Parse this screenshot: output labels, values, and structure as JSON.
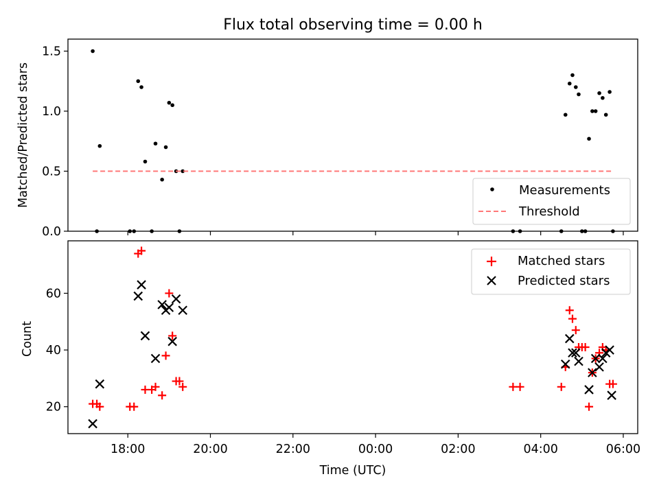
{
  "chart_data": [
    {
      "type": "scatter",
      "title": "Flux total observing time = 0.00 h",
      "ylabel": "Matched/Predicted stars",
      "xlabel": "",
      "ylim": [
        0,
        1.6
      ],
      "yticks": [
        0.0,
        0.5,
        1.0,
        1.5
      ],
      "ytick_labels": [
        "0.0",
        "0.5",
        "1.0",
        "1.5"
      ],
      "xlim_hours": [
        16.55,
        30.35
      ],
      "xticks_hours": [
        18,
        20,
        22,
        24,
        26,
        28,
        30
      ],
      "legend_position": "lower-right",
      "series": [
        {
          "name": "Measurements",
          "color": "#000000",
          "marker": "dot",
          "points": [
            [
              17.15,
              1.5
            ],
            [
              17.25,
              0.0
            ],
            [
              17.32,
              0.71
            ],
            [
              18.05,
              0.0
            ],
            [
              18.15,
              0.0
            ],
            [
              18.25,
              1.25
            ],
            [
              18.33,
              1.2
            ],
            [
              18.42,
              0.58
            ],
            [
              18.58,
              0.0
            ],
            [
              18.67,
              0.73
            ],
            [
              18.83,
              0.43
            ],
            [
              18.92,
              0.7
            ],
            [
              19.0,
              1.07
            ],
            [
              19.08,
              1.05
            ],
            [
              19.17,
              0.5
            ],
            [
              19.25,
              0.0
            ],
            [
              19.33,
              0.5
            ],
            [
              27.33,
              0.0
            ],
            [
              27.5,
              0.0
            ],
            [
              28.5,
              0.0
            ],
            [
              28.6,
              0.97
            ],
            [
              28.7,
              1.23
            ],
            [
              28.77,
              1.3
            ],
            [
              28.85,
              1.2
            ],
            [
              28.92,
              1.14
            ],
            [
              29.0,
              0.0
            ],
            [
              29.08,
              0.0
            ],
            [
              29.17,
              0.77
            ],
            [
              29.25,
              1.0
            ],
            [
              29.33,
              1.0
            ],
            [
              29.42,
              1.15
            ],
            [
              29.5,
              1.11
            ],
            [
              29.58,
              0.97
            ],
            [
              29.67,
              1.16
            ],
            [
              29.75,
              0.0
            ]
          ]
        },
        {
          "name": "Threshold",
          "color": "#ff7777",
          "style": "dashed",
          "points": [
            [
              17.15,
              0.5
            ],
            [
              29.75,
              0.5
            ]
          ]
        }
      ]
    },
    {
      "type": "scatter",
      "title": "",
      "ylabel": "Count",
      "xlabel": "Time (UTC)",
      "ylim": [
        10.5,
        78.5
      ],
      "yticks": [
        20,
        40,
        60
      ],
      "ytick_labels": [
        "20",
        "40",
        "60"
      ],
      "xlim_hours": [
        16.55,
        30.35
      ],
      "xticks_hours": [
        18,
        20,
        22,
        24,
        26,
        28,
        30
      ],
      "xtick_labels": [
        "18:00",
        "20:00",
        "22:00",
        "00:00",
        "02:00",
        "04:00",
        "06:00"
      ],
      "legend_position": "upper-right",
      "series": [
        {
          "name": "Matched stars",
          "color": "#ff0000",
          "marker": "plus",
          "points": [
            [
              17.15,
              21
            ],
            [
              17.25,
              21
            ],
            [
              17.32,
              20
            ],
            [
              18.05,
              20
            ],
            [
              18.15,
              20
            ],
            [
              18.25,
              74
            ],
            [
              18.33,
              75
            ],
            [
              18.42,
              26
            ],
            [
              18.58,
              26
            ],
            [
              18.67,
              27
            ],
            [
              18.83,
              24
            ],
            [
              18.92,
              38
            ],
            [
              19.0,
              60
            ],
            [
              19.08,
              45
            ],
            [
              19.17,
              29
            ],
            [
              19.25,
              29
            ],
            [
              19.33,
              27
            ],
            [
              27.33,
              27
            ],
            [
              27.5,
              27
            ],
            [
              28.5,
              27
            ],
            [
              28.6,
              34
            ],
            [
              28.7,
              54
            ],
            [
              28.77,
              51
            ],
            [
              28.85,
              47
            ],
            [
              28.92,
              41
            ],
            [
              29.0,
              41
            ],
            [
              29.08,
              41
            ],
            [
              29.17,
              20
            ],
            [
              29.25,
              32
            ],
            [
              29.33,
              37
            ],
            [
              29.42,
              39
            ],
            [
              29.5,
              41
            ],
            [
              29.58,
              40
            ],
            [
              29.67,
              28
            ],
            [
              29.75,
              28
            ]
          ]
        },
        {
          "name": "Predicted stars",
          "color": "#000000",
          "marker": "x",
          "points": [
            [
              17.15,
              14
            ],
            [
              17.32,
              28
            ],
            [
              18.25,
              59
            ],
            [
              18.33,
              63
            ],
            [
              18.42,
              45
            ],
            [
              18.67,
              37
            ],
            [
              18.83,
              56
            ],
            [
              18.92,
              54
            ],
            [
              19.0,
              55
            ],
            [
              19.08,
              43
            ],
            [
              19.17,
              58
            ],
            [
              19.33,
              54
            ],
            [
              28.6,
              35
            ],
            [
              28.7,
              44
            ],
            [
              28.77,
              39
            ],
            [
              28.85,
              39
            ],
            [
              28.92,
              36
            ],
            [
              29.17,
              26
            ],
            [
              29.25,
              32
            ],
            [
              29.33,
              37
            ],
            [
              29.42,
              34
            ],
            [
              29.5,
              37
            ],
            [
              29.58,
              39
            ],
            [
              29.67,
              40
            ],
            [
              29.72,
              24
            ]
          ]
        }
      ]
    }
  ]
}
